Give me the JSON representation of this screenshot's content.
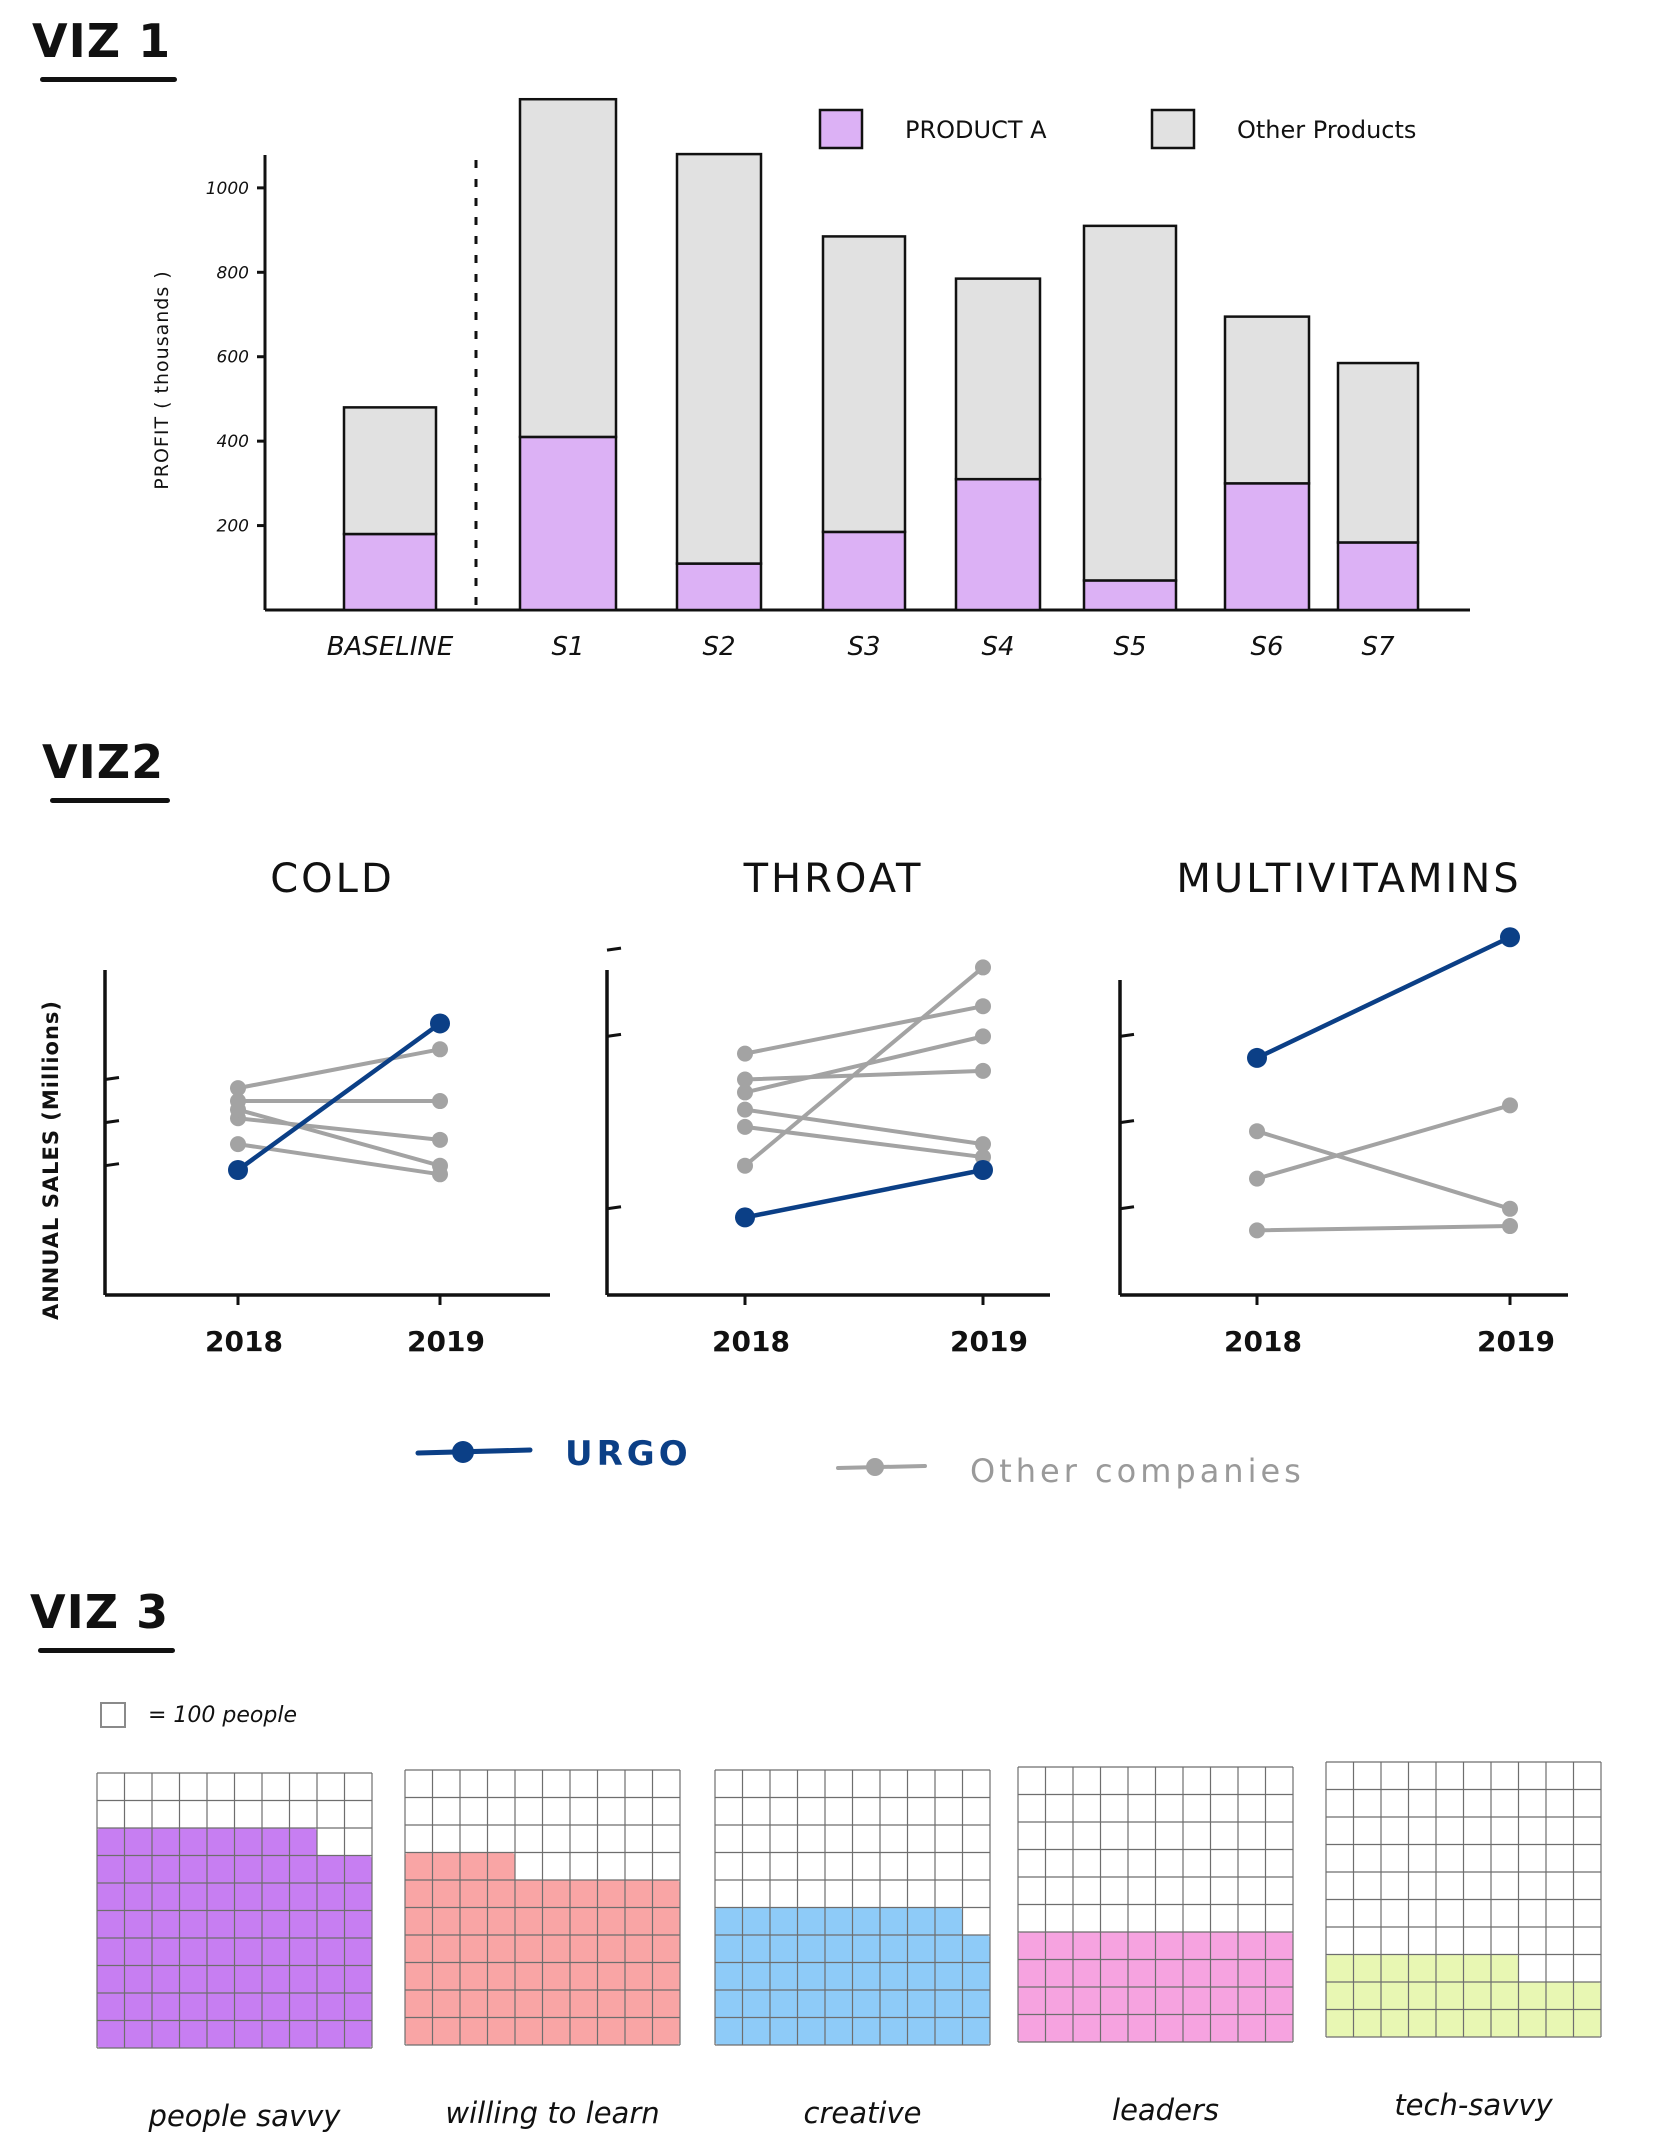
{
  "viz1": {
    "title": "VIZ 1",
    "chart_data": {
      "type": "bar",
      "stacked": true,
      "categories": [
        "BASELINE",
        "S1",
        "S2",
        "S3",
        "S4",
        "S5",
        "S6",
        "S7"
      ],
      "series": [
        {
          "name": "PRODUCT A",
          "values": [
            180,
            410,
            110,
            185,
            310,
            70,
            300,
            160
          ],
          "color": "#dcb1f5"
        },
        {
          "name": "Other Products",
          "values": [
            300,
            800,
            970,
            700,
            475,
            840,
            395,
            425
          ],
          "color": "#e1e1e1"
        }
      ],
      "ylabel": "PROFIT ( thousands )",
      "yticks": [
        200,
        400,
        600,
        800,
        1000
      ],
      "ylim": [
        0,
        1220
      ],
      "divider_after": "BASELINE",
      "legend": "top-right"
    }
  },
  "viz2": {
    "title": "VIZ2",
    "ylabel": "ANNUAL SALES (Millions)",
    "legend": {
      "urgo": "URGO",
      "others": "Other companies"
    },
    "colors": {
      "urgo": "#0b3f86",
      "others": "#a3a3a3"
    },
    "chart_data": [
      {
        "type": "line",
        "title": "COLD",
        "x": [
          "2018",
          "2019"
        ],
        "series": [
          {
            "name": "URGO",
            "values": [
              2.9,
              6.3
            ]
          },
          {
            "values": [
              4.8,
              5.7
            ]
          },
          {
            "values": [
              4.5,
              4.5
            ]
          },
          {
            "values": [
              4.1,
              3.6
            ]
          },
          {
            "values": [
              3.5,
              2.8
            ]
          },
          {
            "values": [
              4.3,
              3.0
            ]
          }
        ],
        "yticks": [
          3,
          4,
          5
        ],
        "ylim": [
          0,
          8.7
        ]
      },
      {
        "type": "line",
        "title": "THROAT",
        "x": [
          "2018",
          "2019"
        ],
        "series": [
          {
            "name": "URGO",
            "values": [
              1.8,
              2.9
            ]
          },
          {
            "values": [
              5.6,
              6.7
            ]
          },
          {
            "values": [
              4.7,
              6.0
            ]
          },
          {
            "values": [
              4.3,
              3.5
            ]
          },
          {
            "values": [
              3.9,
              3.2
            ]
          },
          {
            "values": [
              5.0,
              5.2
            ]
          },
          {
            "values": [
              3.0,
              7.6
            ]
          }
        ],
        "yticks": [
          2,
          6,
          8
        ],
        "ylim": [
          0,
          8.7
        ]
      },
      {
        "type": "line",
        "title": "MULTIVITAMINS",
        "x": [
          "2018",
          "2019"
        ],
        "series": [
          {
            "name": "URGO",
            "values": [
              5.5,
              8.3
            ]
          },
          {
            "values": [
              3.8,
              2.0
            ]
          },
          {
            "values": [
              2.7,
              4.4
            ]
          },
          {
            "values": [
              1.5,
              1.6
            ]
          }
        ],
        "yticks": [
          2,
          4,
          6
        ],
        "ylim": [
          0,
          8.7
        ]
      }
    ]
  },
  "viz3": {
    "title": "VIZ 3",
    "key_label": "= 100 people",
    "chart_data": {
      "type": "waffle",
      "unit": 100,
      "grid": [
        10,
        10
      ],
      "categories": [
        "people savvy",
        "willing to learn",
        "creative",
        "leaders",
        "tech-savvy"
      ],
      "values": [
        78,
        64,
        49,
        40,
        27
      ],
      "colors": [
        "#c77ef2",
        "#f9a5a5",
        "#8ecbf8",
        "#f6a3e0",
        "#e8f7b3"
      ]
    }
  }
}
